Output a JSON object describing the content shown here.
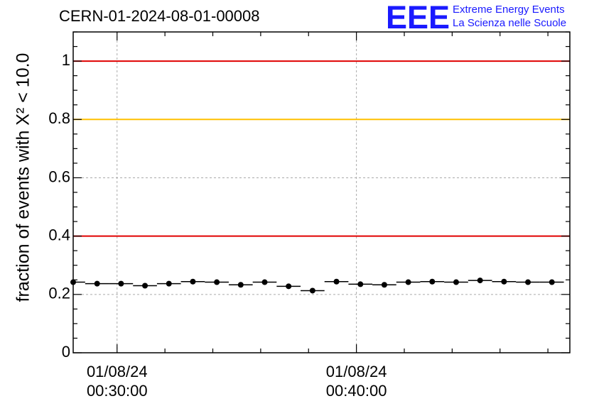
{
  "header": {
    "run_title": "CERN-01-2024-08-01-00008",
    "logo_text": "EEE",
    "logo_line1": "Extreme Energy Events",
    "logo_line2": "La Scienza nelle Scuole",
    "logo_color": "#1a1aff"
  },
  "chart_data": {
    "type": "scatter",
    "title": "",
    "ylabel": "fraction of events with X² < 10.0",
    "xlabel": "",
    "ylim": [
      0,
      1.1
    ],
    "yticks": [
      0,
      0.2,
      0.4,
      0.6,
      0.8,
      1
    ],
    "ytick_labels": [
      "0",
      "0.2",
      "0.4",
      "0.6",
      "0.8",
      "1"
    ],
    "xlim": [
      "01/08/24 00:28:10",
      "01/08/24 00:48:55"
    ],
    "xtick_labels": [
      {
        "x": "01/08/24 00:30:00",
        "date": "01/08/24",
        "time": "00:30:00"
      },
      {
        "x": "01/08/24 00:40:00",
        "date": "01/08/24",
        "time": "00:40:00"
      }
    ],
    "grid": true,
    "reference_lines": [
      {
        "y": 1.0,
        "color": "#e00000"
      },
      {
        "y": 0.8,
        "color": "#ffc000"
      },
      {
        "y": 0.4,
        "color": "#e00000"
      }
    ],
    "series": [
      {
        "x": [
          "00:28:10",
          "00:29:10",
          "00:30:10",
          "00:31:10",
          "00:32:10",
          "00:33:10",
          "00:34:10",
          "00:35:10",
          "00:36:10",
          "00:37:10",
          "00:38:10",
          "00:39:10",
          "00:40:10",
          "00:41:10",
          "00:42:10",
          "00:43:10",
          "00:44:10",
          "00:45:10",
          "00:46:10",
          "00:47:10",
          "00:48:10"
        ],
        "y": [
          0.242,
          0.237,
          0.237,
          0.23,
          0.237,
          0.244,
          0.242,
          0.233,
          0.242,
          0.228,
          0.213,
          0.244,
          0.235,
          0.233,
          0.242,
          0.244,
          0.242,
          0.248,
          0.244,
          0.242,
          0.242
        ],
        "color": "#000000"
      }
    ]
  }
}
